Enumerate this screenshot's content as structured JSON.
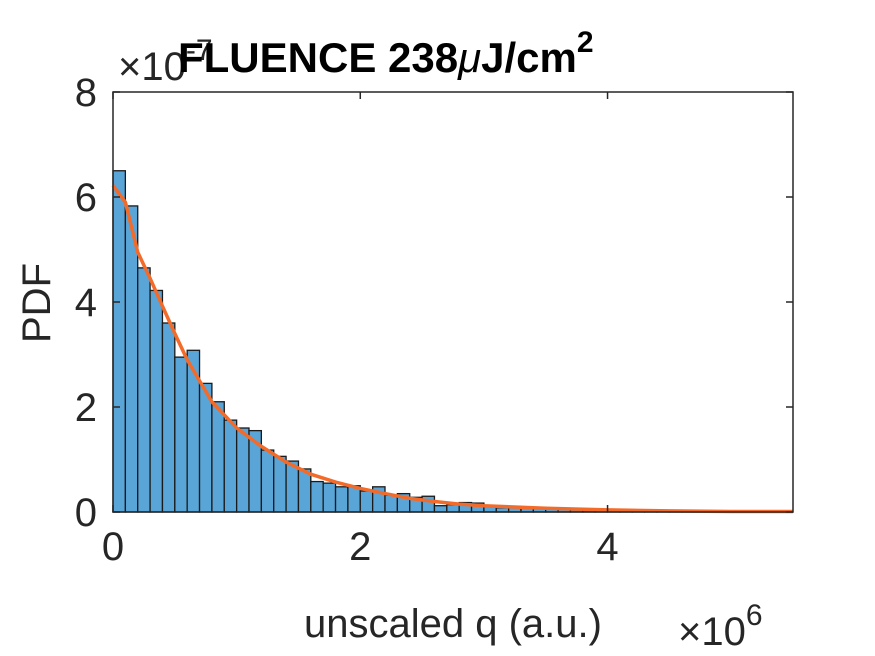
{
  "chart_data": {
    "type": "bar",
    "title_prefix": "FLUENCE 238",
    "title_mu": "μ",
    "title_unit": "J/cm",
    "title_exp": "2",
    "xlabel": "unscaled q (a.u.)",
    "ylabel": "PDF",
    "x_multiplier_base": "×10",
    "x_multiplier_exp": "6",
    "y_multiplier_base": "×10",
    "y_multiplier_exp": "-7",
    "x_scale": 1000000,
    "y_scale": 1e-07,
    "xlim": [
      0,
      5.5
    ],
    "ylim": [
      0,
      8
    ],
    "xticks": [
      0,
      2,
      4
    ],
    "yticks": [
      0,
      2,
      4,
      6,
      8
    ],
    "bin_width": 0.1,
    "bin_start": 0,
    "histogram_values": [
      6.5,
      5.83,
      4.65,
      4.22,
      3.6,
      2.95,
      3.08,
      2.45,
      2.1,
      1.75,
      1.6,
      1.55,
      1.18,
      1.06,
      0.97,
      0.82,
      0.58,
      0.55,
      0.48,
      0.5,
      0.4,
      0.48,
      0.32,
      0.35,
      0.28,
      0.3,
      0.12,
      0.14,
      0.18,
      0.17,
      0.1,
      0.08,
      0.11,
      0.08,
      0.09,
      0.06,
      0.05,
      0.04,
      0.03,
      0.03,
      0.02,
      0.03,
      0.02,
      0.01,
      0.01,
      0.01,
      0.01,
      0.01,
      0.01,
      0.01,
      0.0,
      0.01,
      0.0,
      0.0,
      0.0
    ],
    "fit_x": [
      0,
      0.1,
      0.2,
      0.3,
      0.4,
      0.5,
      0.6,
      0.7,
      0.8,
      0.9,
      1.0,
      1.2,
      1.4,
      1.6,
      1.8,
      2.0,
      2.2,
      2.4,
      2.6,
      2.8,
      3.0,
      3.5,
      4.0,
      4.5,
      5.0,
      5.5
    ],
    "fit_y": [
      6.22,
      5.9,
      4.95,
      4.45,
      3.92,
      3.4,
      2.9,
      2.5,
      2.1,
      1.85,
      1.6,
      1.25,
      0.95,
      0.72,
      0.57,
      0.45,
      0.35,
      0.26,
      0.2,
      0.15,
      0.12,
      0.07,
      0.04,
      0.02,
      0.01,
      0.01
    ],
    "bar_color": "#5aa5d7",
    "bar_edge_color": "#1a1a1a",
    "fit_color": "#f26b2a",
    "grid": false,
    "legend": "none"
  }
}
